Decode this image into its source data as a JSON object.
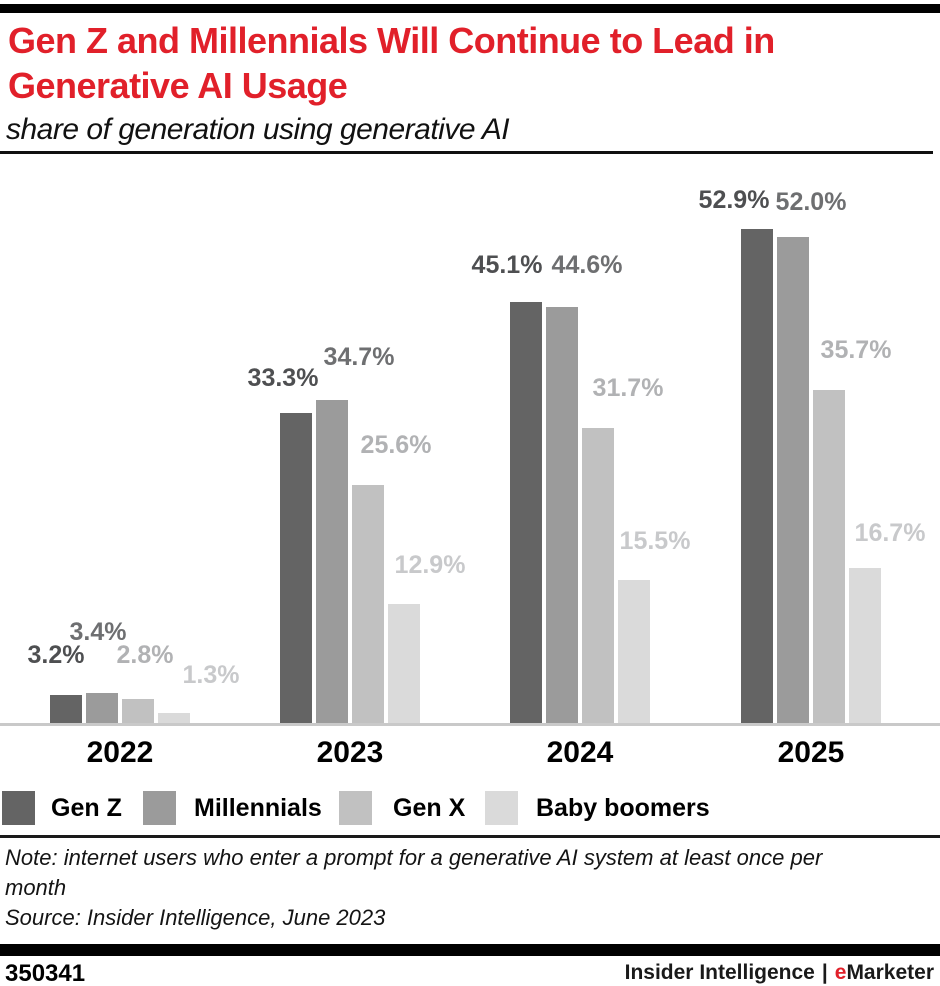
{
  "header": {
    "title_line1": "Gen Z and Millennials Will Continue to Lead in",
    "title_line2": "Generative AI Usage",
    "subtitle": "share of generation using generative AI",
    "title_color": "#e1202a"
  },
  "chart_data": {
    "type": "bar",
    "title": "Gen Z and Millennials Will Continue to Lead in Generative AI Usage",
    "subtitle": "share of generation using generative AI",
    "categories": [
      "2022",
      "2023",
      "2024",
      "2025"
    ],
    "series": [
      {
        "name": "Gen Z",
        "color": "#646464",
        "label_color": "#4e4f51",
        "values": [
          3.2,
          33.3,
          45.1,
          52.9
        ]
      },
      {
        "name": "Millennials",
        "color": "#9b9b9b",
        "label_color": "#6e6f71",
        "values": [
          3.4,
          34.7,
          44.6,
          52.0
        ]
      },
      {
        "name": "Gen X",
        "color": "#c1c1c1",
        "label_color": "#b1b2b4",
        "values": [
          2.8,
          25.6,
          31.7,
          35.7
        ]
      },
      {
        "name": "Baby boomers",
        "color": "#dadada",
        "label_color": "#c8c9cb",
        "values": [
          1.3,
          12.9,
          15.5,
          16.7
        ]
      }
    ],
    "value_suffix": "%",
    "value_decimals": 1,
    "data_labels": true,
    "ylim": [
      0,
      60
    ],
    "grid": false,
    "legend_position": "bottom",
    "axis_line_color": "#c9c9c9"
  },
  "notes": {
    "note_line1": "Note: internet users who enter a prompt for a generative AI system at least once per",
    "note_line2": "month",
    "source": "Source: Insider Intelligence, June 2023"
  },
  "footer": {
    "chart_id": "350341",
    "brand_left": "Insider Intelligence",
    "brand_separator": "|",
    "brand_e": "e",
    "brand_rest": "Marketer",
    "brand_e_color": "#e1202a"
  }
}
